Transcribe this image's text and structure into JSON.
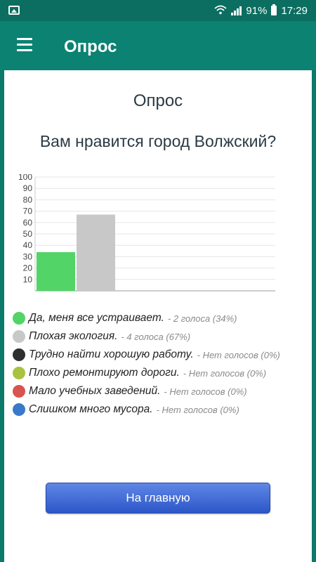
{
  "status_bar": {
    "left_icon": "image-icon",
    "battery": "91%",
    "time": "17:29",
    "icons": [
      "wifi-icon",
      "signal-icon",
      "battery-icon"
    ]
  },
  "app_bar": {
    "menu_icon": "hamburger-menu-icon",
    "title": "Опрос",
    "color": "#0b8272"
  },
  "poll": {
    "heading": "Опрос",
    "question": "Вам нравится город Волжский?"
  },
  "chart_data": {
    "type": "bar",
    "categories": [
      "Да, меня все устраивает.",
      "Плохая экология.",
      "Трудно найти хорошую работу.",
      "Плохо ремонтируют дороги.",
      "Мало учебных заведений.",
      "Слишком много мусора."
    ],
    "values": [
      34,
      67,
      0,
      0,
      0,
      0
    ],
    "colors": [
      "#52d467",
      "#c8c8c8",
      "#2f2f2f",
      "#a9c23f",
      "#d9534f",
      "#3a78c9"
    ],
    "yticks": [
      10,
      20,
      30,
      40,
      50,
      60,
      70,
      80,
      90,
      100
    ],
    "ylim": [
      0,
      100
    ],
    "grid": true
  },
  "legend": [
    {
      "label": "Да, меня все устраивает.",
      "votes": "- 2 голоса (34%)",
      "color": "#52d467"
    },
    {
      "label": "Плохая экология.",
      "votes": "- 4 голоса (67%)",
      "color": "#c8c8c8"
    },
    {
      "label": "Трудно найти хорошую работу.",
      "votes": "- Нет голосов (0%)",
      "color": "#2f2f2f"
    },
    {
      "label": "Плохо ремонтируют дороги.",
      "votes": "- Нет голосов (0%)",
      "color": "#a9c23f"
    },
    {
      "label": "Мало учебных заведений.",
      "votes": "- Нет голосов (0%)",
      "color": "#d9534f"
    },
    {
      "label": "Слишком много мусора.",
      "votes": "- Нет голосов (0%)",
      "color": "#3a78c9"
    }
  ],
  "home_button": {
    "label": "На главную"
  }
}
